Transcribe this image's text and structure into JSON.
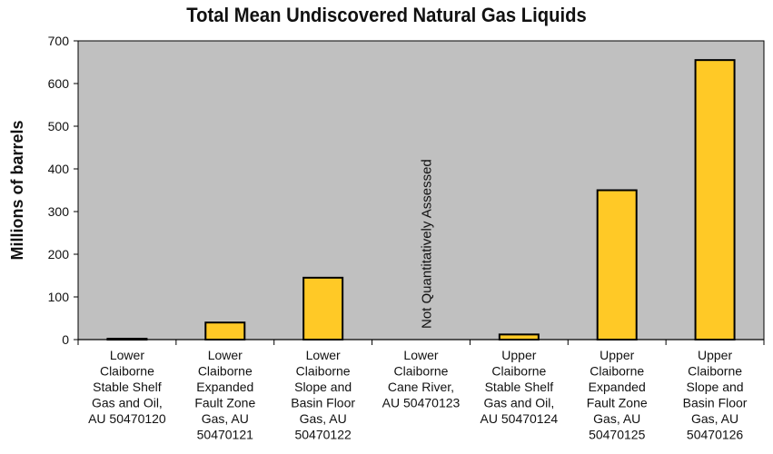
{
  "chart_data": {
    "type": "bar",
    "title": "Total Mean Undiscovered Natural Gas Liquids",
    "ylabel": "Millions of barrels",
    "xlabel": "",
    "ylim": [
      0,
      700
    ],
    "yticks": [
      0,
      100,
      200,
      300,
      400,
      500,
      600,
      700
    ],
    "grid": false,
    "legend": "none",
    "categories": [
      [
        "Lower",
        "Claiborne",
        "Stable Shelf",
        "Gas and Oil,",
        "AU 50470120"
      ],
      [
        "Lower",
        "Claiborne",
        "Expanded",
        "Fault Zone",
        "Gas, AU",
        "50470121"
      ],
      [
        "Lower",
        "Claiborne",
        "Slope and",
        "Basin Floor",
        "Gas, AU",
        "50470122"
      ],
      [
        "Lower",
        "Claiborne",
        "Cane River,",
        "AU 50470123"
      ],
      [
        "Upper",
        "Claiborne",
        "Stable Shelf",
        "Gas and Oil,",
        "AU 50470124"
      ],
      [
        "Upper",
        "Claiborne",
        "Expanded",
        "Fault Zone",
        "Gas, AU",
        "50470125"
      ],
      [
        "Upper",
        "Claiborne",
        "Slope and",
        "Basin Floor",
        "Gas, AU",
        "50470126"
      ]
    ],
    "values": [
      2,
      40,
      145,
      null,
      12,
      350,
      655
    ],
    "annotations": [
      {
        "category_index": 3,
        "text": "Not Quantitatively Assessed"
      }
    ],
    "colors": {
      "bar_fill": "#FFC926",
      "bar_stroke": "#000000",
      "plot_background": "#C0C0C0",
      "axis": "#000000"
    }
  }
}
